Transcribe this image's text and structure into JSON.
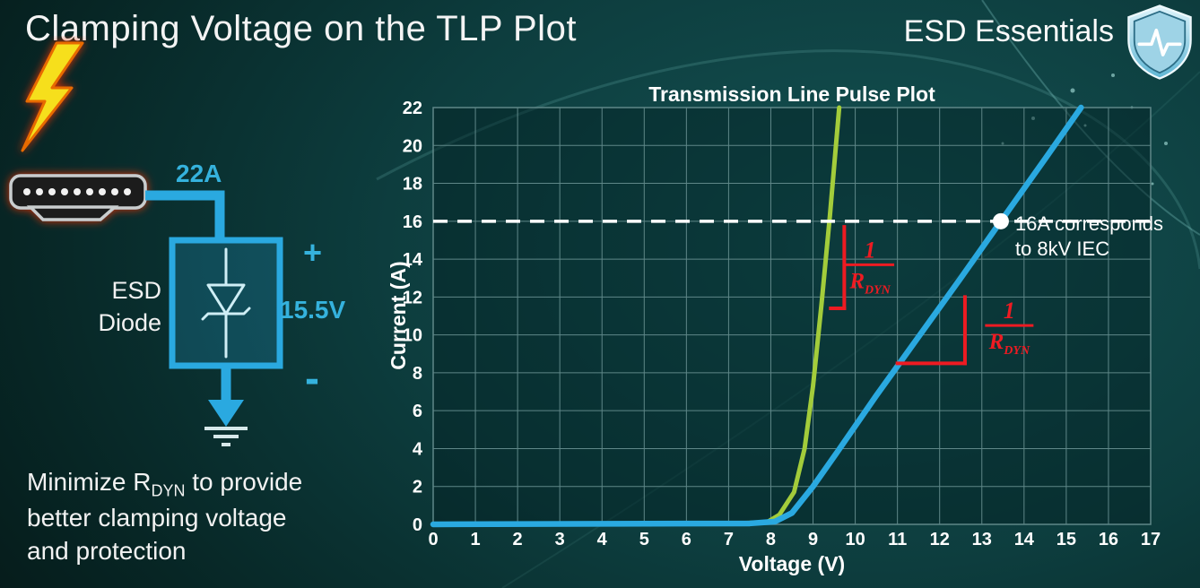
{
  "page": {
    "title": "Clamping Voltage on the TLP Plot",
    "brand": "ESD Essentials"
  },
  "diagram": {
    "surge_current_label": "22A",
    "device_label_line1": "ESD",
    "device_label_line2": "Diode",
    "plus_label": "+",
    "clamp_voltage_label": "15.5V",
    "minus_label": "-"
  },
  "caption": {
    "line1_pre": "Minimize R",
    "line1_sub": "DYN",
    "line1_post": " to provide",
    "line2": "better clamping voltage",
    "line3": "and protection"
  },
  "chart_data": {
    "type": "line",
    "title": "Transmission Line Pulse Plot",
    "xlabel": "Voltage (V)",
    "ylabel": "Current (A)",
    "xlim": [
      0,
      17
    ],
    "ylim": [
      0,
      22
    ],
    "xticks": [
      0,
      1,
      2,
      3,
      4,
      5,
      6,
      7,
      8,
      9,
      10,
      11,
      12,
      13,
      14,
      15,
      16,
      17
    ],
    "yticks": [
      0,
      2,
      4,
      6,
      8,
      10,
      12,
      14,
      16,
      18,
      20,
      22
    ],
    "grid": true,
    "legend": false,
    "series": [
      {
        "name": "green-curve-low-rdyn",
        "color": "#a3cc3b",
        "width": 5,
        "points": [
          [
            0,
            0
          ],
          [
            7.0,
            0.05
          ],
          [
            7.9,
            0.1
          ],
          [
            8.2,
            0.5
          ],
          [
            8.55,
            1.7
          ],
          [
            8.8,
            4.0
          ],
          [
            9.0,
            7.3
          ],
          [
            9.2,
            11.6
          ],
          [
            9.4,
            16.3
          ],
          [
            9.62,
            22
          ]
        ]
      },
      {
        "name": "blue-curve-high-rdyn",
        "color": "#2aa9e0",
        "width": 6.5,
        "points": [
          [
            0,
            0
          ],
          [
            7.5,
            0.05
          ],
          [
            8.1,
            0.15
          ],
          [
            8.5,
            0.6
          ],
          [
            9.0,
            2.0
          ],
          [
            9.6,
            3.9
          ],
          [
            10.5,
            6.8
          ],
          [
            11.5,
            9.9
          ],
          [
            12.5,
            13.0
          ],
          [
            13.45,
            16.0
          ],
          [
            14.5,
            19.3
          ],
          [
            15.35,
            22
          ]
        ]
      }
    ],
    "reference_line": {
      "y": 16,
      "color": "#ffffff",
      "style": "dashed"
    },
    "marker": {
      "x": 13.45,
      "y": 16,
      "color": "#ffffff",
      "label_lines": [
        "16A corresponds",
        "to 8kV IEC"
      ]
    },
    "slope_annotations": [
      {
        "segments": [
          [
            [
              9.42,
              11.4
            ],
            [
              9.74,
              11.4
            ]
          ],
          [
            [
              9.74,
              11.4
            ],
            [
              9.74,
              15.7
            ]
          ]
        ],
        "label": {
          "numerator": "1",
          "denominator_main": "R",
          "denominator_sub": "DYN"
        },
        "label_pos": [
          10.35,
          13.7
        ]
      },
      {
        "segments": [
          [
            [
              11.0,
              8.5
            ],
            [
              12.6,
              8.5
            ]
          ],
          [
            [
              12.6,
              8.5
            ],
            [
              12.6,
              12.0
            ]
          ]
        ],
        "label": {
          "numerator": "1",
          "denominator_main": "R",
          "denominator_sub": "DYN"
        },
        "label_pos": [
          13.65,
          10.5
        ]
      }
    ],
    "colors": {
      "grid": "#5f8788",
      "plot_bg": "rgba(3,32,34,0.45)",
      "annotation": "#ee1b22",
      "axis_text": "#ffffff"
    }
  }
}
